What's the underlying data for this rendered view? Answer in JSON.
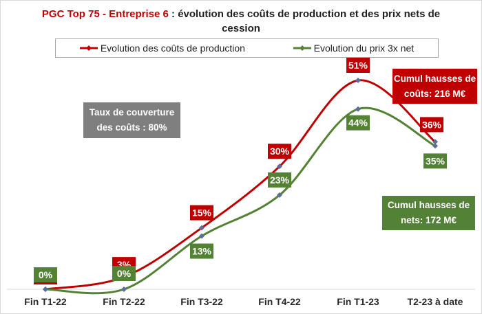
{
  "title": {
    "brand": "PGC Top 75 - Entreprise 6",
    "rest": " : évolution des coûts de production et des prix nets de cession"
  },
  "notes": {
    "coverage": "Taux de couverture des coûts : 80%",
    "cost_total": "Cumul hausses de coûts: 216 M€",
    "net_total": "Cumul hausses de nets: 172 M€"
  },
  "colors": {
    "costs": "#c00000",
    "prices": "#548235",
    "marker": "#5b6e9a"
  },
  "chart_data": {
    "type": "line",
    "categories": [
      "Fin T1-22",
      "Fin T2-22",
      "Fin T3-22",
      "Fin T4-22",
      "Fin T1-23",
      "T2-23 à date"
    ],
    "ylim": [
      0,
      55
    ],
    "series": [
      {
        "name": "Evolution des coûts de production",
        "values": [
          0,
          3,
          15,
          30,
          51,
          36
        ],
        "labels": [
          "0%",
          "3%",
          "15%",
          "30%",
          "51%",
          "36%"
        ]
      },
      {
        "name": "Evolution du prix 3x net",
        "values": [
          0,
          0,
          13,
          23,
          44,
          35
        ],
        "labels": [
          "0%",
          "0%",
          "13%",
          "23%",
          "44%",
          "35%"
        ]
      }
    ],
    "legend": "top"
  }
}
